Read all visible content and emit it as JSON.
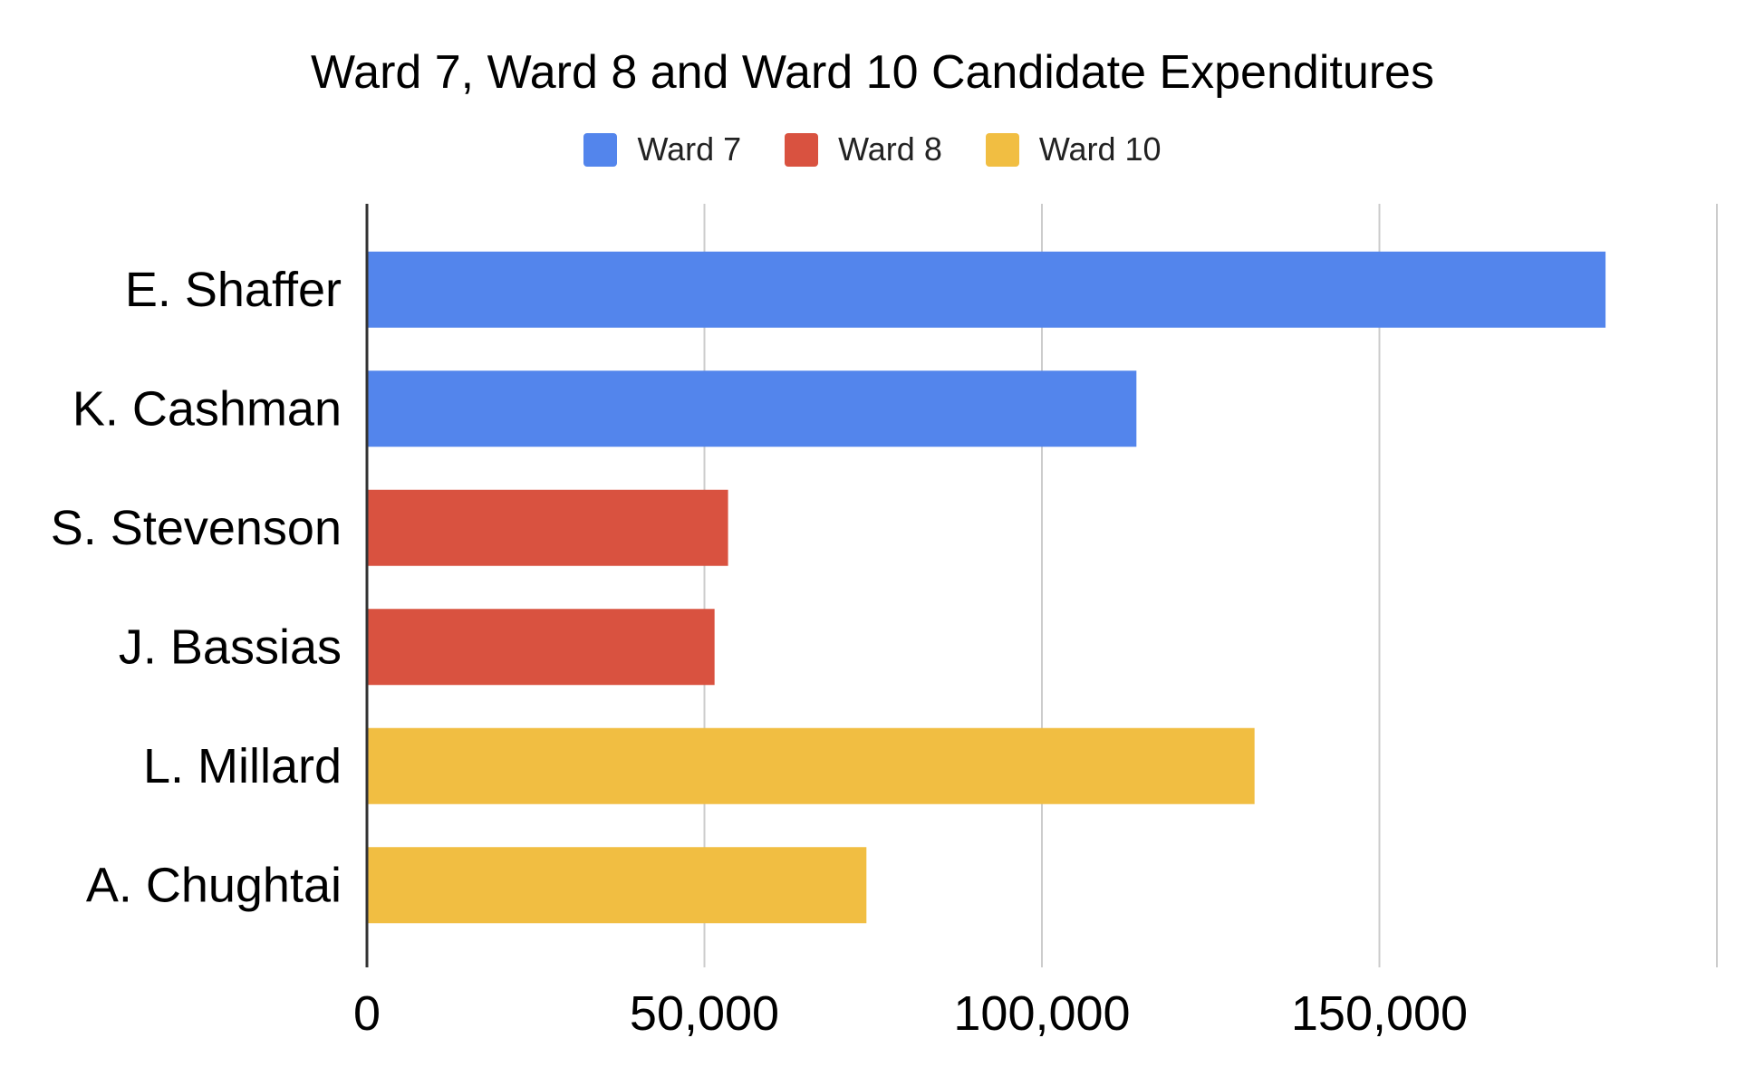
{
  "chart_data": {
    "type": "bar",
    "orientation": "horizontal",
    "title": "Ward 7, Ward 8 and Ward 10 Candidate Expenditures",
    "categories": [
      "E. Shaffer",
      "K. Cashman",
      "S. Stevenson",
      "J. Bassias",
      "L. Millard",
      "A. Chughtai"
    ],
    "series": [
      {
        "name": "Ward 7",
        "color": "#5385EC",
        "values": [
          183500,
          114000,
          null,
          null,
          null,
          null
        ]
      },
      {
        "name": "Ward 8",
        "color": "#D95240",
        "values": [
          null,
          null,
          53500,
          51500,
          null,
          null
        ]
      },
      {
        "name": "Ward 10",
        "color": "#F1BE42",
        "values": [
          null,
          null,
          null,
          null,
          131500,
          74000
        ]
      }
    ],
    "xlim": [
      0,
      200000
    ],
    "x_ticks": [
      0,
      50000,
      100000,
      150000
    ],
    "x_tick_labels": [
      "0",
      "50,000",
      "100,000",
      "150,000"
    ],
    "grid": true,
    "legend_position": "top-center"
  }
}
